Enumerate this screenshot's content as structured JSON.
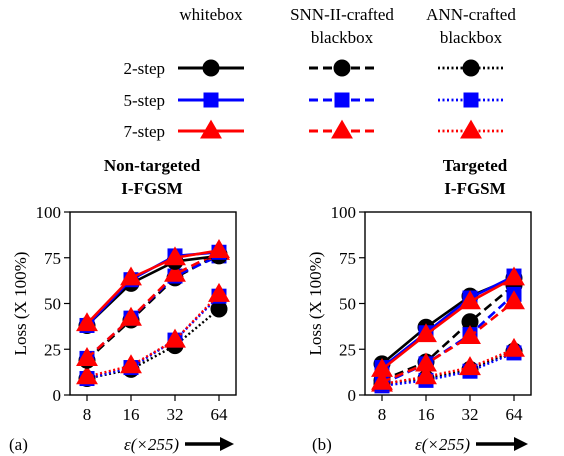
{
  "legend": {
    "column_headers": [
      [
        "whitebox"
      ],
      [
        "SNN-II-crafted",
        "blackbox"
      ],
      [
        "ANN-crafted",
        "blackbox"
      ]
    ],
    "row_labels": [
      "2-step",
      "5-step",
      "7-step"
    ],
    "row_colors": [
      "#000000",
      "#0000ff",
      "#ff0000"
    ],
    "row_markers": [
      "circle",
      "square",
      "triangle"
    ],
    "column_dash_styles": [
      "solid",
      "dashed",
      "dotted"
    ]
  },
  "chart_data": [
    {
      "type": "line",
      "panel_label": "(a)",
      "title": [
        "Non-targeted",
        "I-FGSM"
      ],
      "ylabel": "Loss (X 100%)",
      "xlabel": "ε(×255)",
      "x": [
        8,
        16,
        32,
        64
      ],
      "ylim": [
        0,
        100
      ],
      "yticks": [
        0,
        25,
        50,
        75,
        100
      ],
      "series": [
        {
          "attack": "whitebox",
          "steps": "2-step",
          "values": [
            38,
            61,
            73,
            76
          ]
        },
        {
          "attack": "whitebox",
          "steps": "5-step",
          "values": [
            38,
            63,
            76,
            78
          ]
        },
        {
          "attack": "whitebox",
          "steps": "7-step",
          "values": [
            39,
            64,
            75,
            79
          ]
        },
        {
          "attack": "SNN-II-crafted blackbox",
          "steps": "2-step",
          "values": [
            19,
            41,
            64,
            77
          ]
        },
        {
          "attack": "SNN-II-crafted blackbox",
          "steps": "5-step",
          "values": [
            20,
            42,
            65,
            76
          ]
        },
        {
          "attack": "SNN-II-crafted blackbox",
          "steps": "7-step",
          "values": [
            20,
            42,
            66,
            78
          ]
        },
        {
          "attack": "ANN-crafted blackbox",
          "steps": "2-step",
          "values": [
            9,
            14,
            27,
            47
          ]
        },
        {
          "attack": "ANN-crafted blackbox",
          "steps": "5-step",
          "values": [
            9,
            15,
            30,
            54
          ]
        },
        {
          "attack": "ANN-crafted blackbox",
          "steps": "7-step",
          "values": [
            10,
            16,
            30,
            55
          ]
        }
      ]
    },
    {
      "type": "line",
      "panel_label": "(b)",
      "title": [
        "Targeted",
        "I-FGSM"
      ],
      "ylabel": "Loss (X 100%)",
      "xlabel": "ε(×255)",
      "x": [
        8,
        16,
        32,
        64
      ],
      "ylim": [
        0,
        100
      ],
      "yticks": [
        0,
        25,
        50,
        75,
        100
      ],
      "series": [
        {
          "attack": "whitebox",
          "steps": "2-step",
          "values": [
            17,
            37,
            54,
            64
          ]
        },
        {
          "attack": "whitebox",
          "steps": "5-step",
          "values": [
            15,
            34,
            53,
            65
          ]
        },
        {
          "attack": "whitebox",
          "steps": "7-step",
          "values": [
            14,
            33,
            51,
            64
          ]
        },
        {
          "attack": "SNN-II-crafted blackbox",
          "steps": "2-step",
          "values": [
            8,
            18,
            40,
            60
          ]
        },
        {
          "attack": "SNN-II-crafted blackbox",
          "steps": "5-step",
          "values": [
            6,
            17,
            33,
            55
          ]
        },
        {
          "attack": "SNN-II-crafted blackbox",
          "steps": "7-step",
          "values": [
            7,
            17,
            32,
            51
          ]
        },
        {
          "attack": "ANN-crafted blackbox",
          "steps": "2-step",
          "values": [
            6,
            9,
            14,
            24
          ]
        },
        {
          "attack": "ANN-crafted blackbox",
          "steps": "5-step",
          "values": [
            5,
            8,
            13,
            23
          ]
        },
        {
          "attack": "ANN-crafted blackbox",
          "steps": "7-step",
          "values": [
            6,
            10,
            15,
            25
          ]
        }
      ]
    }
  ]
}
